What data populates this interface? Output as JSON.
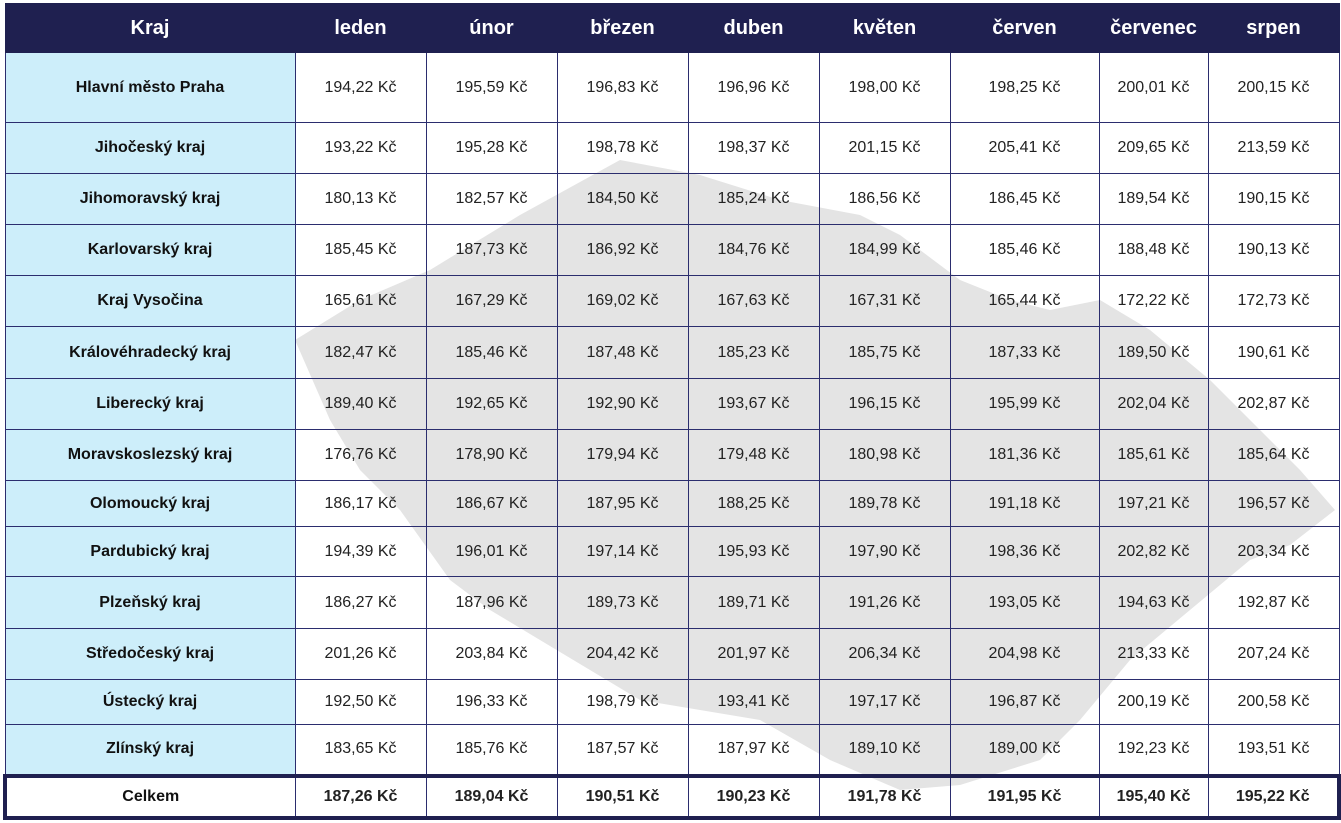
{
  "table": {
    "header": [
      "Kraj",
      "leden",
      "únor",
      "březen",
      "duben",
      "květen",
      "červen",
      "červenec",
      "srpen"
    ],
    "rows": [
      [
        "Hlavní město Praha",
        "194,22 Kč",
        "195,59 Kč",
        "196,83 Kč",
        "196,96 Kč",
        "198,00 Kč",
        "198,25 Kč",
        "200,01 Kč",
        "200,15 Kč"
      ],
      [
        "Jihočeský kraj",
        "193,22 Kč",
        "195,28 Kč",
        "198,78 Kč",
        "198,37 Kč",
        "201,15 Kč",
        "205,41 Kč",
        "209,65 Kč",
        "213,59 Kč"
      ],
      [
        "Jihomoravský kraj",
        "180,13 Kč",
        "182,57 Kč",
        "184,50 Kč",
        "185,24 Kč",
        "186,56 Kč",
        "186,45 Kč",
        "189,54 Kč",
        "190,15 Kč"
      ],
      [
        "Karlovarský kraj",
        "185,45 Kč",
        "187,73 Kč",
        "186,92 Kč",
        "184,76 Kč",
        "184,99 Kč",
        "185,46 Kč",
        "188,48 Kč",
        "190,13 Kč"
      ],
      [
        "Kraj Vysočina",
        "165,61 Kč",
        "167,29 Kč",
        "169,02 Kč",
        "167,63 Kč",
        "167,31 Kč",
        "165,44 Kč",
        "172,22 Kč",
        "172,73 Kč"
      ],
      [
        "Královéhradecký kraj",
        "182,47 Kč",
        "185,46 Kč",
        "187,48 Kč",
        "185,23 Kč",
        "185,75 Kč",
        "187,33 Kč",
        "189,50 Kč",
        "190,61 Kč"
      ],
      [
        "Liberecký kraj",
        "189,40 Kč",
        "192,65 Kč",
        "192,90 Kč",
        "193,67 Kč",
        "196,15 Kč",
        "195,99 Kč",
        "202,04 Kč",
        "202,87 Kč"
      ],
      [
        "Moravskoslezský kraj",
        "176,76 Kč",
        "178,90 Kč",
        "179,94 Kč",
        "179,48 Kč",
        "180,98 Kč",
        "181,36 Kč",
        "185,61 Kč",
        "185,64 Kč"
      ],
      [
        "Olomoucký kraj",
        "186,17 Kč",
        "186,67 Kč",
        "187,95 Kč",
        "188,25 Kč",
        "189,78 Kč",
        "191,18 Kč",
        "197,21 Kč",
        "196,57 Kč"
      ],
      [
        "Pardubický kraj",
        "194,39 Kč",
        "196,01 Kč",
        "197,14 Kč",
        "195,93 Kč",
        "197,90 Kč",
        "198,36 Kč",
        "202,82 Kč",
        "203,34 Kč"
      ],
      [
        "Plzeňský kraj",
        "186,27 Kč",
        "187,96 Kč",
        "189,73 Kč",
        "189,71 Kč",
        "191,26 Kč",
        "193,05 Kč",
        "194,63 Kč",
        "192,87 Kč"
      ],
      [
        "Středočeský kraj",
        "201,26 Kč",
        "203,84 Kč",
        "204,42 Kč",
        "201,97 Kč",
        "206,34 Kč",
        "204,98 Kč",
        "213,33 Kč",
        "207,24 Kč"
      ],
      [
        "Ústecký kraj",
        "192,50 Kč",
        "196,33 Kč",
        "198,79 Kč",
        "193,41 Kč",
        "197,17 Kč",
        "196,87 Kč",
        "200,19 Kč",
        "200,58 Kč"
      ],
      [
        "Zlínský kraj",
        "183,65 Kč",
        "185,76 Kč",
        "187,57 Kč",
        "187,97 Kč",
        "189,10 Kč",
        "189,00 Kč",
        "192,23 Kč",
        "193,51 Kč"
      ]
    ],
    "total": [
      "Celkem",
      "187,26 Kč",
      "189,04 Kč",
      "190,51 Kč",
      "190,23 Kč",
      "191,78 Kč",
      "191,95 Kč",
      "195,40 Kč",
      "195,22 Kč"
    ]
  }
}
